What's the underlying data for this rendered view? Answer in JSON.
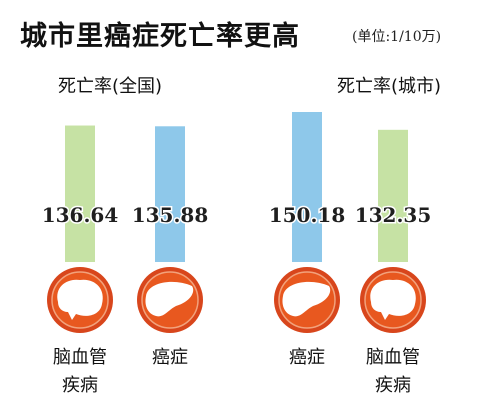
{
  "chart_data": [
    {
      "type": "bar",
      "title": "死亡率(全国)",
      "categories": [
        "脑血管疾病",
        "癌症"
      ],
      "category_lines": [
        [
          "脑血管",
          "疾病"
        ],
        [
          "癌症"
        ]
      ],
      "values": [
        136.64,
        135.88
      ],
      "value_labels": [
        "136.64",
        "135.88"
      ],
      "colors": [
        "#c6e2a4",
        "#8ec8ea"
      ]
    },
    {
      "type": "bar",
      "title": "死亡率(城市)",
      "categories": [
        "癌症",
        "脑血管疾病"
      ],
      "category_lines": [
        [
          "癌症"
        ],
        [
          "脑血管",
          "疾病"
        ]
      ],
      "values": [
        150.18,
        132.35
      ],
      "value_labels": [
        "150.18",
        "132.35"
      ],
      "colors": [
        "#8ec8ea",
        "#c6e2a4"
      ]
    }
  ],
  "header": {
    "title": "城市里癌症死亡率更高",
    "unit": "(单位:1/10万)"
  },
  "icons": [
    "brain-icon",
    "liver-icon",
    "liver-icon",
    "brain-icon"
  ],
  "icon_colors": {
    "ring": "#d8461c",
    "inner": "#e8581f",
    "shape": "#ffffff"
  }
}
